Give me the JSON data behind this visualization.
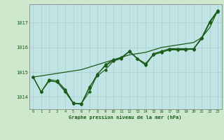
{
  "title": "Graphe pression niveau de la mer (hPa)",
  "xlabel": "Graphe pression niveau de la mer (hPa)",
  "background_color": "#cde8cd",
  "plot_bg_color": "#c0e4e4",
  "grid_color": "#aed4d4",
  "line_color": "#1a5c1a",
  "ylim": [
    1013.5,
    1017.75
  ],
  "xlim": [
    -0.5,
    23.5
  ],
  "yticks": [
    1014,
    1015,
    1016,
    1017
  ],
  "xticks": [
    0,
    1,
    2,
    3,
    4,
    5,
    6,
    7,
    8,
    9,
    10,
    11,
    12,
    13,
    14,
    15,
    16,
    17,
    18,
    19,
    20,
    21,
    22,
    23
  ],
  "hours": [
    0,
    1,
    2,
    3,
    4,
    5,
    6,
    7,
    8,
    9,
    10,
    11,
    12,
    13,
    14,
    15,
    16,
    17,
    18,
    19,
    20,
    21,
    22,
    23
  ],
  "series1": [
    1014.8,
    1014.2,
    1014.7,
    1014.65,
    1014.3,
    1013.75,
    1013.72,
    1014.4,
    1014.85,
    1015.1,
    1015.45,
    1015.55,
    1015.85,
    1015.55,
    1015.3,
    1015.75,
    1015.85,
    1015.95,
    1015.95,
    1015.95,
    1015.95,
    1016.4,
    1017.05,
    1017.5
  ],
  "series2": [
    1014.8,
    1014.2,
    1014.65,
    1014.6,
    1014.25,
    1013.75,
    1013.72,
    1014.2,
    1014.9,
    1015.3,
    1015.5,
    1015.6,
    1015.85,
    1015.55,
    1015.35,
    1015.7,
    1015.8,
    1015.9,
    1015.9,
    1015.9,
    1015.95,
    1016.35,
    1017.0,
    1017.45
  ],
  "series3": [
    1014.8,
    1014.2,
    1014.65,
    1014.6,
    1014.2,
    1013.73,
    1013.7,
    1014.35,
    1014.93,
    1015.25,
    1015.48,
    1015.58,
    1015.83,
    1015.53,
    1015.28,
    1015.72,
    1015.82,
    1015.92,
    1015.92,
    1015.92,
    1015.92,
    1016.38,
    1017.02,
    1017.48
  ],
  "series_trend": [
    1014.8,
    1014.85,
    1014.9,
    1014.95,
    1015.0,
    1015.05,
    1015.1,
    1015.2,
    1015.3,
    1015.4,
    1015.5,
    1015.6,
    1015.7,
    1015.75,
    1015.8,
    1015.9,
    1016.0,
    1016.05,
    1016.1,
    1016.15,
    1016.2,
    1016.4,
    1016.8,
    1017.5
  ]
}
